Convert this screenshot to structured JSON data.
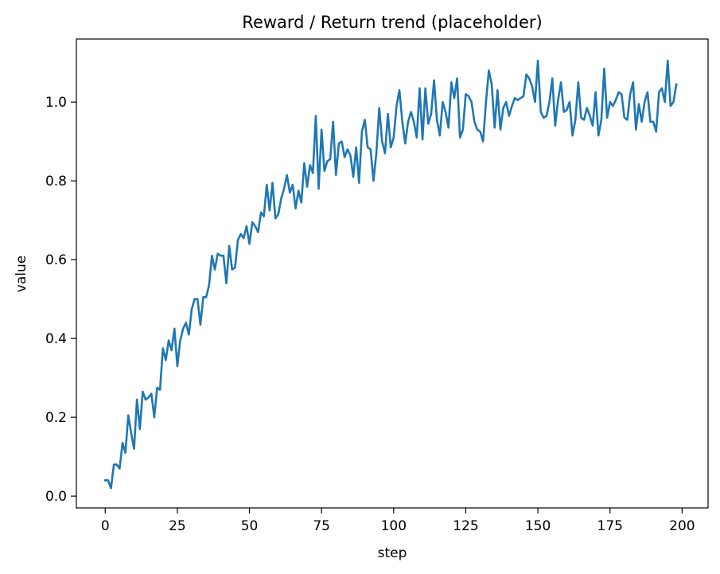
{
  "chart_data": {
    "type": "line",
    "title": "Reward / Return trend (placeholder)",
    "xlabel": "step",
    "ylabel": "value",
    "xlim": [
      -10,
      209
    ],
    "ylim": [
      -0.03,
      1.16
    ],
    "x_ticks": [
      0,
      25,
      50,
      75,
      100,
      125,
      150,
      175,
      200
    ],
    "y_ticks": [
      0.0,
      0.2,
      0.4,
      0.6,
      0.8,
      1.0
    ],
    "x_tick_labels": [
      "0",
      "25",
      "50",
      "75",
      "100",
      "125",
      "150",
      "175",
      "200"
    ],
    "y_tick_labels": [
      "0.0",
      "0.2",
      "0.4",
      "0.6",
      "0.8",
      "1.0"
    ],
    "grid": false,
    "line_color": "#1f77b4",
    "series": [
      {
        "x_start": 0,
        "x_step": 1,
        "values": [
          0.04,
          0.04,
          0.02,
          0.08,
          0.08,
          0.07,
          0.135,
          0.11,
          0.205,
          0.16,
          0.12,
          0.245,
          0.17,
          0.265,
          0.245,
          0.25,
          0.26,
          0.2,
          0.275,
          0.27,
          0.375,
          0.345,
          0.395,
          0.37,
          0.425,
          0.33,
          0.395,
          0.425,
          0.44,
          0.41,
          0.475,
          0.5,
          0.5,
          0.435,
          0.505,
          0.505,
          0.535,
          0.61,
          0.575,
          0.615,
          0.61,
          0.61,
          0.54,
          0.635,
          0.575,
          0.58,
          0.65,
          0.665,
          0.655,
          0.685,
          0.64,
          0.695,
          0.685,
          0.67,
          0.72,
          0.71,
          0.79,
          0.725,
          0.795,
          0.705,
          0.715,
          0.755,
          0.78,
          0.815,
          0.77,
          0.79,
          0.73,
          0.775,
          0.745,
          0.845,
          0.785,
          0.84,
          0.82,
          0.965,
          0.78,
          0.93,
          0.825,
          0.85,
          0.855,
          0.95,
          0.815,
          0.895,
          0.9,
          0.86,
          0.88,
          0.865,
          0.81,
          0.885,
          0.795,
          0.925,
          0.955,
          0.885,
          0.88,
          0.8,
          0.87,
          0.985,
          0.9,
          0.87,
          0.97,
          0.885,
          0.91,
          0.99,
          1.03,
          0.95,
          0.895,
          0.95,
          0.975,
          0.95,
          0.91,
          1.035,
          0.905,
          1.035,
          0.945,
          0.97,
          1.055,
          0.955,
          0.915,
          1.0,
          0.975,
          0.935,
          1.05,
          1.01,
          1.06,
          0.91,
          0.93,
          1.02,
          1.015,
          1.0,
          0.95,
          0.93,
          0.925,
          0.9,
          1.0,
          1.08,
          1.045,
          0.935,
          1.03,
          0.93,
          0.985,
          1.0,
          0.965,
          0.99,
          1.01,
          1.005,
          1.01,
          1.015,
          1.07,
          1.06,
          1.04,
          1.0,
          1.105,
          0.975,
          0.96,
          0.965,
          1.0,
          1.06,
          0.94,
          1.005,
          1.05,
          0.975,
          0.98,
          1.0,
          0.915,
          0.955,
          1.05,
          0.96,
          0.955,
          0.985,
          0.965,
          0.94,
          1.025,
          0.915,
          0.955,
          1.085,
          0.96,
          1.0,
          0.99,
          1.005,
          1.025,
          1.02,
          0.96,
          0.955,
          1.02,
          1.05,
          0.93,
          0.995,
          0.95,
          1.0,
          1.025,
          0.95,
          0.95,
          0.925,
          1.025,
          1.035,
          1.0,
          1.105,
          0.99,
          1.0,
          1.045
        ]
      }
    ]
  }
}
